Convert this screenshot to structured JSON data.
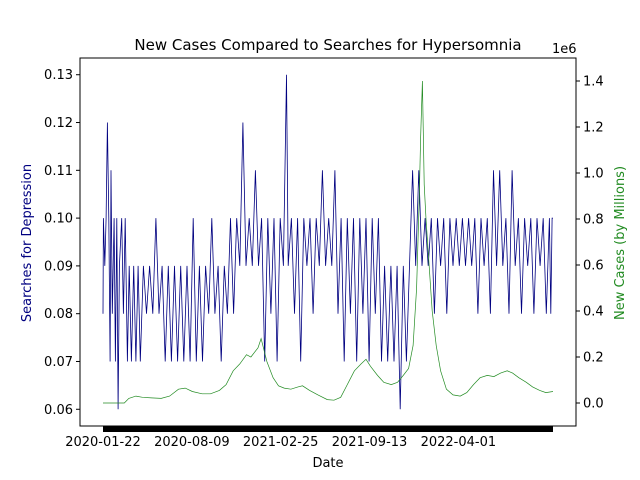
{
  "chart_data": {
    "type": "line",
    "title": "New Cases Compared to Searches for Hypersomnia",
    "xlabel": "Date",
    "ylabel_left": "Searches for Depression",
    "ylabel_right": "New Cases (by Millions)",
    "right_offset_label": "1e6",
    "x_ticks": [
      "2020-01-22",
      "2020-08-09",
      "2021-02-25",
      "2021-09-13",
      "2022-04-01"
    ],
    "x_range": [
      "2020-01-22",
      "2022-10-31"
    ],
    "ylim_left": [
      0.0565,
      0.1335
    ],
    "ylim_right": [
      -100000.0,
      1500000.0
    ],
    "yticks_left": [
      0.06,
      0.07,
      0.08,
      0.09,
      0.1,
      0.11,
      0.12,
      0.13
    ],
    "yticks_right": [
      0.0,
      0.2,
      0.4,
      0.6,
      0.8,
      1.0,
      1.2,
      1.4
    ],
    "colors": {
      "searches": "#000080",
      "cases": "#228b22",
      "axis": "#000000"
    },
    "series": [
      {
        "axis": "left",
        "color": "#000080",
        "points": [
          [
            "2020-01-22",
            0.08
          ],
          [
            "2020-01-23",
            0.1
          ],
          [
            "2020-01-26",
            0.09
          ],
          [
            "2020-01-29",
            0.1
          ],
          [
            "2020-02-01",
            0.12
          ],
          [
            "2020-02-04",
            0.1
          ],
          [
            "2020-02-07",
            0.07
          ],
          [
            "2020-02-09",
            0.11
          ],
          [
            "2020-02-12",
            0.08
          ],
          [
            "2020-02-16",
            0.1
          ],
          [
            "2020-02-19",
            0.07
          ],
          [
            "2020-02-22",
            0.1
          ],
          [
            "2020-02-25",
            0.06
          ],
          [
            "2020-02-28",
            0.09
          ],
          [
            "2020-03-04",
            0.1
          ],
          [
            "2020-03-08",
            0.08
          ],
          [
            "2020-03-12",
            0.1
          ],
          [
            "2020-03-17",
            0.07
          ],
          [
            "2020-03-21",
            0.09
          ],
          [
            "2020-03-26",
            0.07
          ],
          [
            "2020-03-31",
            0.09
          ],
          [
            "2020-04-05",
            0.07
          ],
          [
            "2020-04-10",
            0.09
          ],
          [
            "2020-04-15",
            0.07
          ],
          [
            "2020-04-22",
            0.09
          ],
          [
            "2020-04-29",
            0.08
          ],
          [
            "2020-05-06",
            0.09
          ],
          [
            "2020-05-13",
            0.08
          ],
          [
            "2020-05-20",
            0.1
          ],
          [
            "2020-05-27",
            0.08
          ],
          [
            "2020-06-03",
            0.09
          ],
          [
            "2020-06-10",
            0.07
          ],
          [
            "2020-06-17",
            0.09
          ],
          [
            "2020-06-24",
            0.07
          ],
          [
            "2020-07-01",
            0.09
          ],
          [
            "2020-07-08",
            0.07
          ],
          [
            "2020-07-15",
            0.09
          ],
          [
            "2020-07-22",
            0.07
          ],
          [
            "2020-07-29",
            0.09
          ],
          [
            "2020-08-05",
            0.07
          ],
          [
            "2020-08-12",
            0.1
          ],
          [
            "2020-08-19",
            0.07
          ],
          [
            "2020-08-26",
            0.09
          ],
          [
            "2020-09-02",
            0.07
          ],
          [
            "2020-09-09",
            0.09
          ],
          [
            "2020-09-16",
            0.08
          ],
          [
            "2020-09-23",
            0.1
          ],
          [
            "2020-09-30",
            0.08
          ],
          [
            "2020-10-07",
            0.09
          ],
          [
            "2020-10-14",
            0.07
          ],
          [
            "2020-10-21",
            0.09
          ],
          [
            "2020-10-28",
            0.08
          ],
          [
            "2020-11-04",
            0.1
          ],
          [
            "2020-11-11",
            0.08
          ],
          [
            "2020-11-18",
            0.1
          ],
          [
            "2020-11-25",
            0.09
          ],
          [
            "2020-12-02",
            0.12
          ],
          [
            "2020-12-09",
            0.09
          ],
          [
            "2020-12-16",
            0.1
          ],
          [
            "2020-12-23",
            0.09
          ],
          [
            "2020-12-30",
            0.11
          ],
          [
            "2021-01-06",
            0.09
          ],
          [
            "2021-01-13",
            0.1
          ],
          [
            "2021-01-20",
            0.07
          ],
          [
            "2021-01-27",
            0.1
          ],
          [
            "2021-02-03",
            0.08
          ],
          [
            "2021-02-10",
            0.1
          ],
          [
            "2021-02-17",
            0.07
          ],
          [
            "2021-02-24",
            0.1
          ],
          [
            "2021-03-03",
            0.09
          ],
          [
            "2021-03-10",
            0.13
          ],
          [
            "2021-03-14",
            0.09
          ],
          [
            "2021-03-21",
            0.1
          ],
          [
            "2021-03-28",
            0.08
          ],
          [
            "2021-04-04",
            0.1
          ],
          [
            "2021-04-11",
            0.07
          ],
          [
            "2021-04-18",
            0.1
          ],
          [
            "2021-04-25",
            0.09
          ],
          [
            "2021-05-02",
            0.1
          ],
          [
            "2021-05-09",
            0.08
          ],
          [
            "2021-05-16",
            0.1
          ],
          [
            "2021-05-23",
            0.09
          ],
          [
            "2021-05-30",
            0.11
          ],
          [
            "2021-06-06",
            0.09
          ],
          [
            "2021-06-13",
            0.1
          ],
          [
            "2021-06-20",
            0.09
          ],
          [
            "2021-06-27",
            0.11
          ],
          [
            "2021-07-04",
            0.08
          ],
          [
            "2021-07-11",
            0.1
          ],
          [
            "2021-07-18",
            0.07
          ],
          [
            "2021-07-25",
            0.1
          ],
          [
            "2021-08-01",
            0.08
          ],
          [
            "2021-08-08",
            0.1
          ],
          [
            "2021-08-15",
            0.07
          ],
          [
            "2021-08-22",
            0.1
          ],
          [
            "2021-08-29",
            0.08
          ],
          [
            "2021-09-05",
            0.1
          ],
          [
            "2021-09-12",
            0.07
          ],
          [
            "2021-09-19",
            0.1
          ],
          [
            "2021-09-26",
            0.08
          ],
          [
            "2021-10-03",
            0.1
          ],
          [
            "2021-10-10",
            0.07
          ],
          [
            "2021-10-17",
            0.09
          ],
          [
            "2021-10-24",
            0.07
          ],
          [
            "2021-10-31",
            0.09
          ],
          [
            "2021-11-07",
            0.07
          ],
          [
            "2021-11-14",
            0.09
          ],
          [
            "2021-11-21",
            0.06
          ],
          [
            "2021-11-28",
            0.09
          ],
          [
            "2021-12-05",
            0.07
          ],
          [
            "2021-12-12",
            0.09
          ],
          [
            "2021-12-19",
            0.11
          ],
          [
            "2021-12-26",
            0.09
          ],
          [
            "2022-01-02",
            0.11
          ],
          [
            "2022-01-09",
            0.09
          ],
          [
            "2022-01-16",
            0.1
          ],
          [
            "2022-01-23",
            0.09
          ],
          [
            "2022-01-30",
            0.1
          ],
          [
            "2022-02-06",
            0.08
          ],
          [
            "2022-02-13",
            0.1
          ],
          [
            "2022-02-20",
            0.09
          ],
          [
            "2022-02-27",
            0.1
          ],
          [
            "2022-03-06",
            0.08
          ],
          [
            "2022-03-13",
            0.1
          ],
          [
            "2022-03-20",
            0.09
          ],
          [
            "2022-03-27",
            0.1
          ],
          [
            "2022-04-03",
            0.09
          ],
          [
            "2022-04-10",
            0.1
          ],
          [
            "2022-04-17",
            0.09
          ],
          [
            "2022-04-24",
            0.1
          ],
          [
            "2022-05-01",
            0.09
          ],
          [
            "2022-05-08",
            0.1
          ],
          [
            "2022-05-15",
            0.08
          ],
          [
            "2022-05-22",
            0.1
          ],
          [
            "2022-05-29",
            0.09
          ],
          [
            "2022-06-05",
            0.1
          ],
          [
            "2022-06-12",
            0.08
          ],
          [
            "2022-06-19",
            0.11
          ],
          [
            "2022-06-26",
            0.09
          ],
          [
            "2022-07-03",
            0.11
          ],
          [
            "2022-07-10",
            0.09
          ],
          [
            "2022-07-17",
            0.1
          ],
          [
            "2022-07-24",
            0.08
          ],
          [
            "2022-07-31",
            0.11
          ],
          [
            "2022-08-07",
            0.09
          ],
          [
            "2022-08-14",
            0.1
          ],
          [
            "2022-08-21",
            0.08
          ],
          [
            "2022-08-28",
            0.1
          ],
          [
            "2022-09-04",
            0.09
          ],
          [
            "2022-09-11",
            0.1
          ],
          [
            "2022-09-18",
            0.08
          ],
          [
            "2022-09-25",
            0.1
          ],
          [
            "2022-10-02",
            0.09
          ],
          [
            "2022-10-09",
            0.1
          ],
          [
            "2022-10-16",
            0.08
          ],
          [
            "2022-10-23",
            0.1
          ],
          [
            "2022-10-26",
            0.08
          ],
          [
            "2022-10-29",
            0.1
          ],
          [
            "2022-10-31",
            0.1
          ]
        ]
      },
      {
        "axis": "right",
        "color": "#228b22",
        "points": [
          [
            "2020-01-22",
            0
          ],
          [
            "2020-02-15",
            0
          ],
          [
            "2020-03-10",
            0
          ],
          [
            "2020-03-20",
            20000
          ],
          [
            "2020-04-05",
            30000
          ],
          [
            "2020-04-20",
            25000
          ],
          [
            "2020-05-10",
            22000
          ],
          [
            "2020-06-01",
            20000
          ],
          [
            "2020-06-20",
            30000
          ],
          [
            "2020-07-10",
            60000
          ],
          [
            "2020-07-25",
            65000
          ],
          [
            "2020-08-10",
            50000
          ],
          [
            "2020-09-01",
            40000
          ],
          [
            "2020-09-20",
            40000
          ],
          [
            "2020-10-10",
            55000
          ],
          [
            "2020-10-25",
            80000
          ],
          [
            "2020-11-10",
            140000
          ],
          [
            "2020-11-25",
            170000
          ],
          [
            "2020-12-10",
            210000
          ],
          [
            "2020-12-20",
            200000
          ],
          [
            "2021-01-05",
            240000
          ],
          [
            "2021-01-12",
            280000
          ],
          [
            "2021-01-25",
            180000
          ],
          [
            "2021-02-08",
            110000
          ],
          [
            "2021-02-20",
            75000
          ],
          [
            "2021-03-05",
            65000
          ],
          [
            "2021-03-20",
            60000
          ],
          [
            "2021-04-05",
            70000
          ],
          [
            "2021-04-15",
            75000
          ],
          [
            "2021-05-01",
            55000
          ],
          [
            "2021-05-20",
            35000
          ],
          [
            "2021-06-10",
            15000
          ],
          [
            "2021-06-25",
            12000
          ],
          [
            "2021-07-10",
            25000
          ],
          [
            "2021-07-25",
            80000
          ],
          [
            "2021-08-10",
            140000
          ],
          [
            "2021-08-25",
            170000
          ],
          [
            "2021-09-05",
            190000
          ],
          [
            "2021-09-15",
            160000
          ],
          [
            "2021-10-01",
            120000
          ],
          [
            "2021-10-15",
            90000
          ],
          [
            "2021-11-01",
            80000
          ],
          [
            "2021-11-15",
            90000
          ],
          [
            "2021-11-28",
            120000
          ],
          [
            "2021-12-10",
            150000
          ],
          [
            "2021-12-20",
            250000
          ],
          [
            "2021-12-28",
            500000
          ],
          [
            "2022-01-03",
            900000
          ],
          [
            "2022-01-06",
            1150000
          ],
          [
            "2022-01-10",
            1400000
          ],
          [
            "2022-01-14",
            950000
          ],
          [
            "2022-01-18",
            800000
          ],
          [
            "2022-01-25",
            600000
          ],
          [
            "2022-02-01",
            400000
          ],
          [
            "2022-02-10",
            250000
          ],
          [
            "2022-02-20",
            140000
          ],
          [
            "2022-03-05",
            60000
          ],
          [
            "2022-03-20",
            35000
          ],
          [
            "2022-04-05",
            30000
          ],
          [
            "2022-04-20",
            45000
          ],
          [
            "2022-05-05",
            80000
          ],
          [
            "2022-05-20",
            110000
          ],
          [
            "2022-06-05",
            120000
          ],
          [
            "2022-06-20",
            115000
          ],
          [
            "2022-07-05",
            130000
          ],
          [
            "2022-07-20",
            140000
          ],
          [
            "2022-08-01",
            130000
          ],
          [
            "2022-08-15",
            110000
          ],
          [
            "2022-09-01",
            90000
          ],
          [
            "2022-09-15",
            70000
          ],
          [
            "2022-10-01",
            55000
          ],
          [
            "2022-10-15",
            45000
          ],
          [
            "2022-10-31",
            50000
          ]
        ]
      }
    ]
  }
}
